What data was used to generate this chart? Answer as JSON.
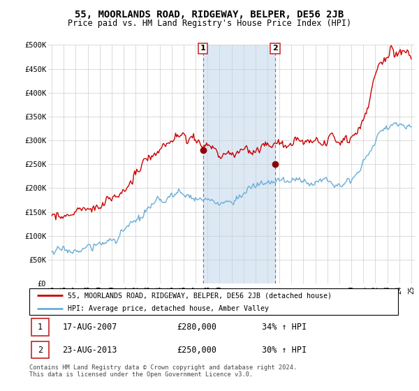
{
  "title": "55, MOORLANDS ROAD, RIDGEWAY, BELPER, DE56 2JB",
  "subtitle": "Price paid vs. HM Land Registry's House Price Index (HPI)",
  "ylabel_vals": [
    "£0",
    "£50K",
    "£100K",
    "£150K",
    "£200K",
    "£250K",
    "£300K",
    "£350K",
    "£400K",
    "£450K",
    "£500K"
  ],
  "ylim": [
    0,
    500000
  ],
  "yticks": [
    0,
    50000,
    100000,
    150000,
    200000,
    250000,
    300000,
    350000,
    400000,
    450000,
    500000
  ],
  "t1_year": 2007.63,
  "t1_price": 280000,
  "t2_year": 2013.64,
  "t2_price": 250000,
  "legend_line1": "55, MOORLANDS ROAD, RIDGEWAY, BELPER, DE56 2JB (detached house)",
  "legend_line2": "HPI: Average price, detached house, Amber Valley",
  "footnote": "Contains HM Land Registry data © Crown copyright and database right 2024.\nThis data is licensed under the Open Government Licence v3.0.",
  "table_row1": [
    "1",
    "17-AUG-2007",
    "£280,000",
    "34% ↑ HPI"
  ],
  "table_row2": [
    "2",
    "23-AUG-2013",
    "£250,000",
    "30% ↑ HPI"
  ],
  "hpi_color": "#6baed6",
  "price_color": "#cc0000",
  "shaded_color": "#dce9f5",
  "vline_color": "#dd4444",
  "background_color": "#ffffff",
  "grid_color": "#cccccc",
  "seed": 17
}
